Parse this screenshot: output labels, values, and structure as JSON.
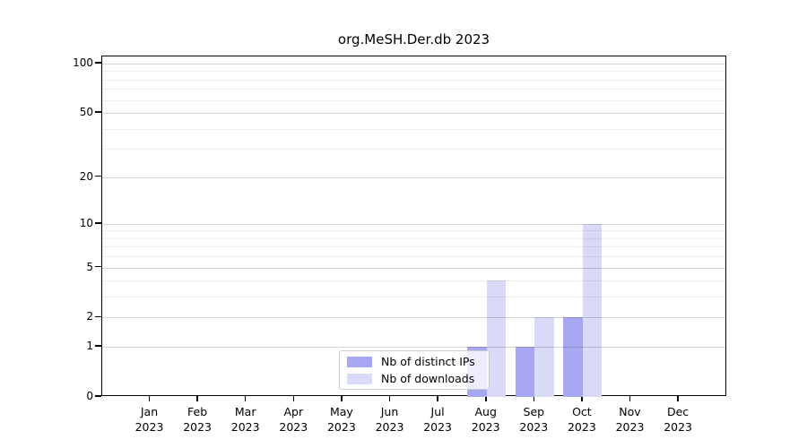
{
  "title": "org.MeSH.Der.db 2023",
  "chart_data": {
    "type": "bar",
    "title": "org.MeSH.Der.db 2023",
    "categories": [
      "Jan 2023",
      "Feb 2023",
      "Mar 2023",
      "Apr 2023",
      "May 2023",
      "Jun 2023",
      "Jul 2023",
      "Aug 2023",
      "Sep 2023",
      "Oct 2023",
      "Nov 2023",
      "Dec 2023"
    ],
    "series": [
      {
        "name": "Nb of distinct IPs",
        "color": "#a7a7f2",
        "values": [
          0,
          0,
          0,
          0,
          0,
          0,
          0,
          1,
          1,
          2,
          0,
          0
        ]
      },
      {
        "name": "Nb of downloads",
        "color": "#d9d9f8",
        "values": [
          0,
          0,
          0,
          0,
          0,
          0,
          0,
          4,
          2,
          10,
          0,
          0
        ]
      }
    ],
    "xlabel": "",
    "ylabel": "",
    "yscale": "log1p",
    "ylim": [
      0,
      110
    ],
    "yticks_major": [
      0,
      1,
      2,
      5,
      10,
      20,
      50,
      100
    ],
    "yticks_minor": [
      3,
      4,
      6,
      7,
      8,
      9,
      30,
      40,
      60,
      70,
      80,
      90
    ],
    "grid": "on",
    "legend_position": "bottom-center-inside"
  }
}
